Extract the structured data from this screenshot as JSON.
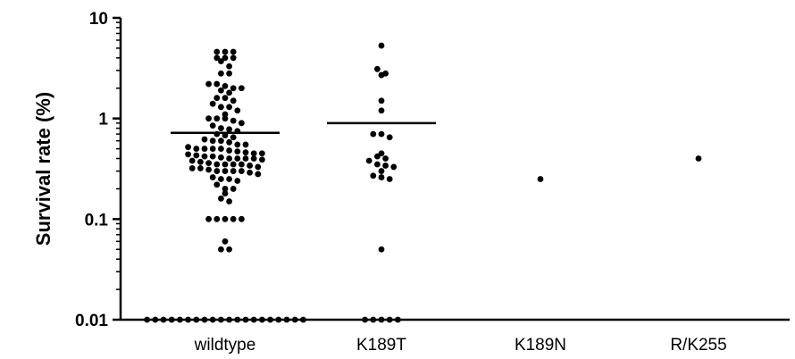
{
  "chart_data": {
    "type": "scatter",
    "ylabel": "Survival rate (%)",
    "xlabel": "",
    "yscale": "log",
    "ylim": [
      0.01,
      10
    ],
    "yticks": [
      "10",
      "1",
      "0.1",
      "0.01"
    ],
    "grid": false,
    "categories": [
      "wildtype",
      "K189T",
      "K189N",
      "R/K255"
    ],
    "groups": [
      {
        "category": "wildtype",
        "mean": 0.72,
        "values": [
          4.6,
          4.6,
          4.6,
          4.0,
          4.0,
          4.0,
          3.7,
          3.3,
          2.8,
          2.8,
          2.2,
          2.2,
          2.1,
          2.0,
          2.0,
          1.9,
          1.8,
          1.6,
          1.6,
          1.5,
          1.4,
          1.3,
          1.3,
          1.2,
          1.1,
          1.0,
          1.0,
          1.0,
          0.95,
          0.9,
          0.85,
          0.8,
          0.78,
          0.75,
          0.7,
          0.68,
          0.65,
          0.62,
          0.6,
          0.6,
          0.58,
          0.55,
          0.55,
          0.52,
          0.5,
          0.5,
          0.5,
          0.5,
          0.48,
          0.47,
          0.46,
          0.45,
          0.45,
          0.44,
          0.43,
          0.42,
          0.42,
          0.41,
          0.4,
          0.4,
          0.4,
          0.4,
          0.39,
          0.38,
          0.37,
          0.36,
          0.35,
          0.35,
          0.35,
          0.35,
          0.34,
          0.33,
          0.32,
          0.32,
          0.31,
          0.3,
          0.3,
          0.3,
          0.3,
          0.29,
          0.28,
          0.26,
          0.25,
          0.25,
          0.24,
          0.22,
          0.2,
          0.2,
          0.18,
          0.16,
          0.15,
          0.1,
          0.1,
          0.1,
          0.1,
          0.1,
          0.06,
          0.05,
          0.05,
          0.01,
          0.01,
          0.01,
          0.01,
          0.01,
          0.01,
          0.01,
          0.01,
          0.01,
          0.01,
          0.01,
          0.01,
          0.01,
          0.01,
          0.01,
          0.01,
          0.01,
          0.01,
          0.01,
          0.01
        ]
      },
      {
        "category": "K189T",
        "mean": 0.9,
        "values": [
          5.3,
          3.1,
          2.8,
          2.7,
          1.5,
          1.2,
          0.7,
          0.7,
          0.65,
          0.45,
          0.42,
          0.4,
          0.38,
          0.35,
          0.34,
          0.33,
          0.3,
          0.27,
          0.26,
          0.25,
          0.05,
          0.01,
          0.01,
          0.01,
          0.01,
          0.01
        ]
      },
      {
        "category": "K189N",
        "values": [
          0.25
        ]
      },
      {
        "category": "R/K255",
        "values": [
          0.4
        ]
      }
    ]
  }
}
